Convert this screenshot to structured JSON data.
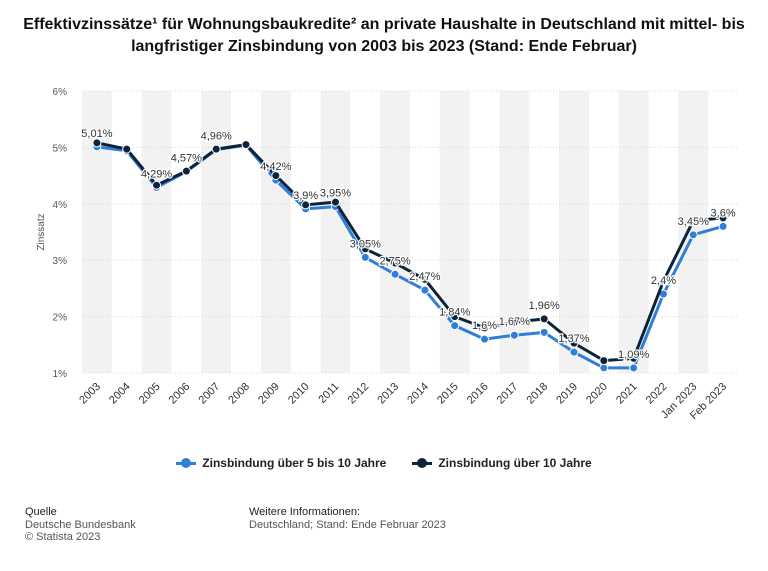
{
  "title": "Effektivzinssätze¹ für Wohnungsbaukredite² an private Haushalte in Deutschland mit mittel- bis langfristiger Zinsbindung von 2003 bis 2023 (Stand: Ende Februar)",
  "chart_data": {
    "type": "line",
    "title": "Effektivzinssätze¹ für Wohnungsbaukredite² an private Haushalte in Deutschland mit mittel- bis langfristiger Zinsbindung von 2003 bis 2023 (Stand: Ende Februar)",
    "ylabel": "Zinssatz",
    "xlabel": "",
    "ylim": [
      1,
      6
    ],
    "yticks": [
      "1%",
      "2%",
      "3%",
      "4%",
      "5%",
      "6%"
    ],
    "categories": [
      "2003",
      "2004",
      "2005",
      "2006",
      "2007",
      "2008",
      "2009",
      "2010",
      "2011",
      "2012",
      "2013",
      "2014",
      "2015",
      "2016",
      "2017",
      "2018",
      "2019",
      "2020",
      "2021",
      "2022",
      "Jan 2023",
      "Feb 2023"
    ],
    "grid": true,
    "legend_position": "bottom",
    "series": [
      {
        "name": "Zinsbindung über 5 bis 10 Jahre",
        "color": "#2f7ed8",
        "values": [
          5.01,
          4.94,
          4.29,
          4.57,
          4.96,
          5.04,
          4.42,
          3.91,
          3.95,
          3.05,
          2.75,
          2.47,
          1.84,
          1.6,
          1.67,
          1.72,
          1.37,
          1.09,
          1.09,
          2.4,
          3.45,
          3.6
        ]
      },
      {
        "name": "Zinsbindung über 10 Jahre",
        "color": "#0d233a",
        "values": [
          5.08,
          4.97,
          4.33,
          4.58,
          4.97,
          5.05,
          4.5,
          3.98,
          4.03,
          3.2,
          2.95,
          2.66,
          2.0,
          1.8,
          1.9,
          1.96,
          1.53,
          1.22,
          1.26,
          2.63,
          3.7,
          3.75
        ]
      }
    ],
    "data_labels": [
      {
        "series": 0,
        "index": 0,
        "text": "5,01%"
      },
      {
        "series": 0,
        "index": 2,
        "text": "4,29%"
      },
      {
        "series": 0,
        "index": 3,
        "text": "4,57%"
      },
      {
        "series": 0,
        "index": 4,
        "text": "4,96%"
      },
      {
        "series": 0,
        "index": 6,
        "text": "4,42%"
      },
      {
        "series": 0,
        "index": 7,
        "text": "3,9%"
      },
      {
        "series": 0,
        "index": 8,
        "text": "3,95%"
      },
      {
        "series": 0,
        "index": 9,
        "text": "3,05%"
      },
      {
        "series": 0,
        "index": 10,
        "text": "2,75%"
      },
      {
        "series": 0,
        "index": 11,
        "text": "2,47%"
      },
      {
        "series": 0,
        "index": 12,
        "text": "1,84%"
      },
      {
        "series": 0,
        "index": 13,
        "text": "1,6%"
      },
      {
        "series": 0,
        "index": 14,
        "text": "1,67%"
      },
      {
        "series": 1,
        "index": 15,
        "text": "1,96%"
      },
      {
        "series": 0,
        "index": 16,
        "text": "1,37%"
      },
      {
        "series": 0,
        "index": 18,
        "text": "1,09%"
      },
      {
        "series": 0,
        "index": 19,
        "text": "2,4%"
      },
      {
        "series": 0,
        "index": 20,
        "text": "3,45%"
      },
      {
        "series": 0,
        "index": 21,
        "text": "3,6%"
      }
    ]
  },
  "legend": {
    "items": [
      {
        "label": "Zinsbindung über 5 bis 10 Jahre",
        "color": "#2f7ed8"
      },
      {
        "label": "Zinsbindung über 10 Jahre",
        "color": "#0d233a"
      }
    ]
  },
  "footer": {
    "source_heading": "Quelle",
    "source_line1": "Deutsche Bundesbank",
    "source_line2": "© Statista 2023",
    "info_heading": "Weitere Informationen:",
    "info_line1": "Deutschland; Stand: Ende Februar 2023"
  }
}
